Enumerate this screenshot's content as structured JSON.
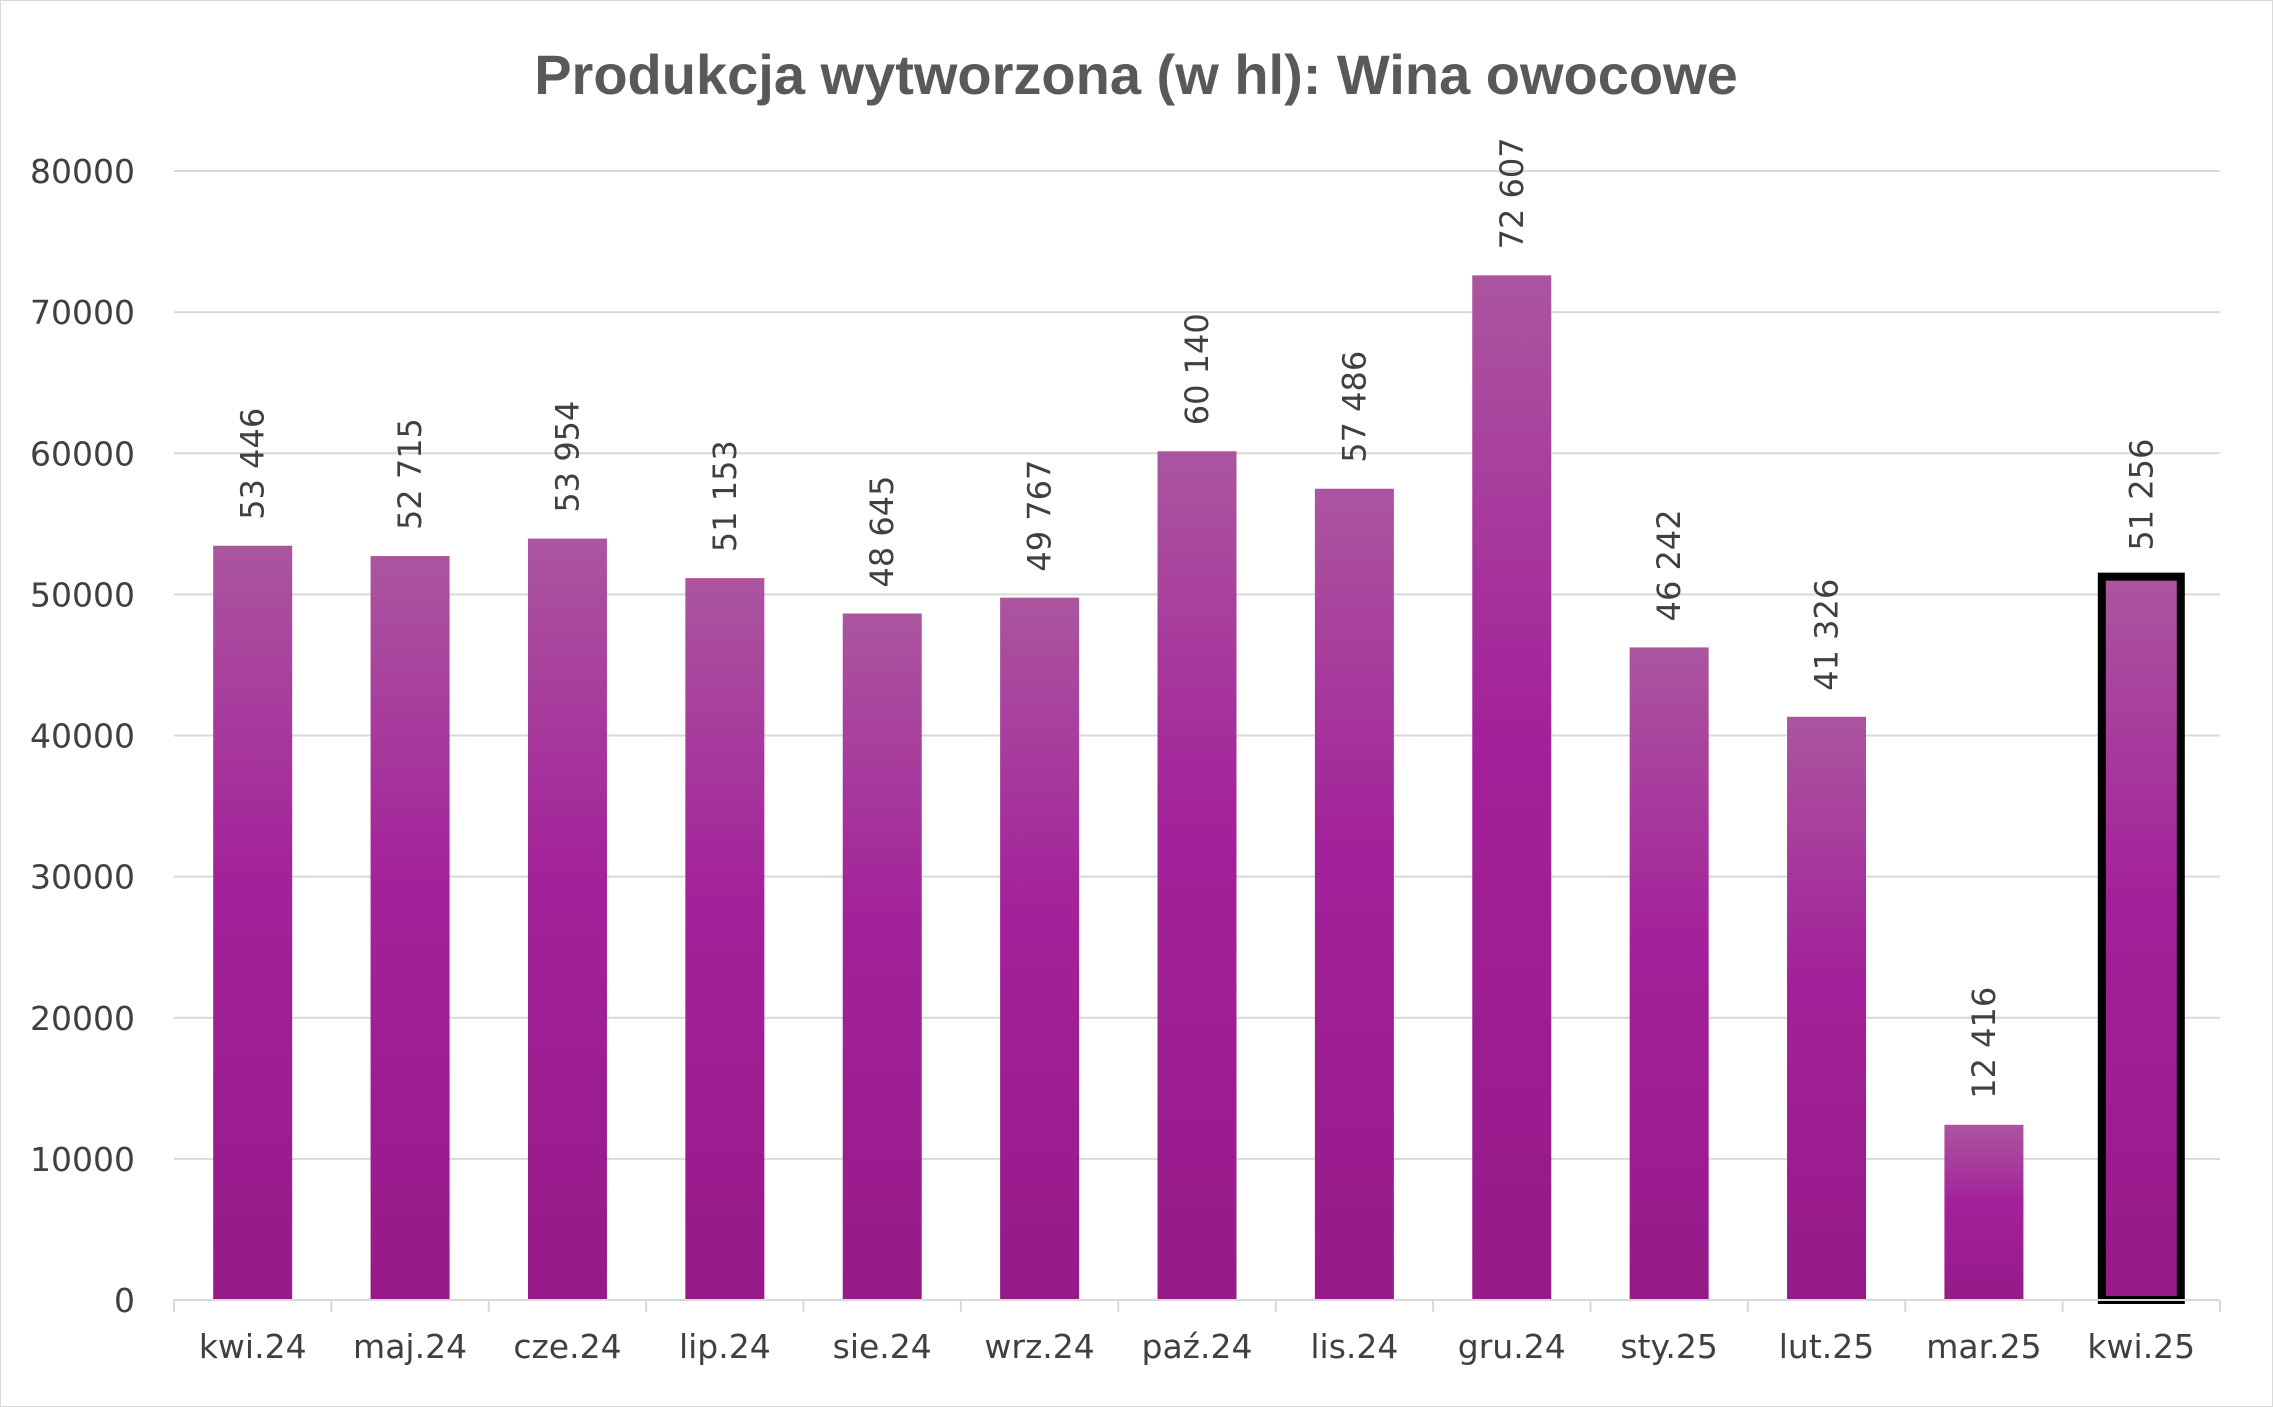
{
  "chart_data": {
    "type": "bar",
    "title": "Produkcja wytworzona (w hl): Wina owocowe",
    "xlabel": "",
    "ylabel": "",
    "ylim": [
      0,
      80000
    ],
    "y_ticks": [
      "0",
      "10000",
      "20000",
      "30000",
      "40000",
      "50000",
      "60000",
      "70000",
      "80000"
    ],
    "categories": [
      "kwi.24",
      "maj.24",
      "cze.24",
      "lip.24",
      "sie.24",
      "wrz.24",
      "paź.24",
      "lis.24",
      "gru.24",
      "sty.25",
      "lut.25",
      "mar.25",
      "kwi.25"
    ],
    "values": [
      53446,
      52715,
      53954,
      51153,
      48645,
      49767,
      60140,
      57486,
      72607,
      46242,
      41326,
      12416,
      51256
    ],
    "data_labels": [
      "53 446",
      "52 715",
      "53 954",
      "51 153",
      "48 645",
      "49 767",
      "60 140",
      "57 486",
      "72 607",
      "46 242",
      "41 326",
      "12 416",
      "51 256"
    ],
    "highlighted_category": "kwi.25",
    "grid": true,
    "legend": "none",
    "colors": {
      "bar_top": "#ab559f",
      "bar_mid": "#a3219a",
      "bar_bottom": "#961a88",
      "highlight_border": "#000000",
      "grid": "#d9d9d9",
      "text": "#404040",
      "title": "#595959"
    }
  }
}
